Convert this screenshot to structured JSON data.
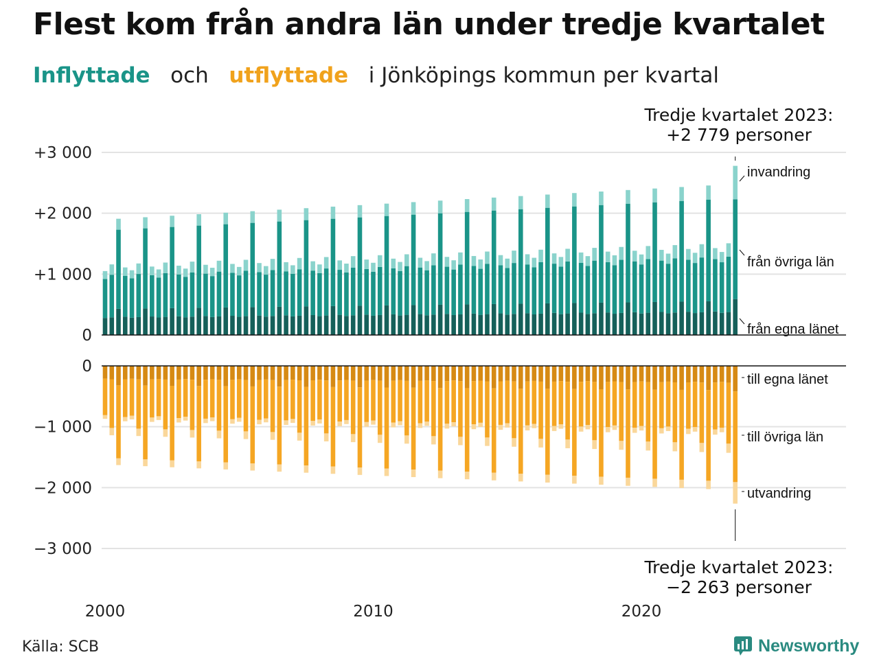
{
  "title": "Flest kom från andra län under tredje kvartalet",
  "subtitle": {
    "inflyttade": "Inflyttade",
    "och": "och",
    "utflyttade": "utflyttade",
    "rest": "i Jönköpings  kommun  per  kvartal"
  },
  "source": "Källa: SCB",
  "brand": "Newsworthy",
  "colors": {
    "in_egna": "#15605a",
    "in_ovriga": "#1a9488",
    "in_invandring": "#8ad3cc",
    "ut_egna": "#d68a14",
    "ut_ovriga": "#f5a623",
    "ut_utvandring": "#fad79a",
    "grid": "#e3e3e3"
  },
  "chart_data": {
    "type": "bar",
    "stacked": true,
    "x_start": "2000 Q1",
    "x_end": "2023 Q3",
    "x_ticks": [
      "2000",
      "2010",
      "2020"
    ],
    "y_ticks_top": [
      "+3 000",
      "+2 000",
      "+1 000",
      "0"
    ],
    "y_ticks_bottom": [
      "0",
      "−1 000",
      "−2 000",
      "−3 000"
    ],
    "ylim_top": [
      0,
      3000
    ],
    "ylim_bottom": [
      -3000,
      0
    ],
    "grid": true,
    "annotation_top": [
      "Tredje kvartalet 2023:",
      "+2 779 personer"
    ],
    "annotation_bottom": [
      "Tredje kvartalet 2023:",
      "−2 263 personer"
    ],
    "series_labels": {
      "invandring": "invandring",
      "fran_ovriga": "från övriga län",
      "fran_egna": "från egna länet",
      "till_egna": "till egna länet",
      "till_ovriga": "till övriga län",
      "utvandring": "utvandring"
    },
    "quarter_pattern": {
      "in_egna": [
        280,
        290,
        430,
        300
      ],
      "in_ovriga": [
        640,
        700,
        1300,
        670
      ],
      "in_invandring": [
        130,
        170,
        180,
        140
      ],
      "ut_egna": [
        210,
        220,
        320,
        220
      ],
      "ut_ovriga": [
        600,
        800,
        1200,
        620
      ],
      "ut_utvandring": [
        60,
        120,
        110,
        70
      ]
    },
    "in_growth_per_year": 0.013,
    "ut_growth_per_year": 0.011,
    "last_quarter": {
      "in_egna": 590,
      "in_ovriga": 1640,
      "in_invandring": 549,
      "ut_egna": 420,
      "ut_ovriga": 1490,
      "ut_utvandring": 353,
      "in_total": 2779,
      "ut_total": -2263
    }
  }
}
